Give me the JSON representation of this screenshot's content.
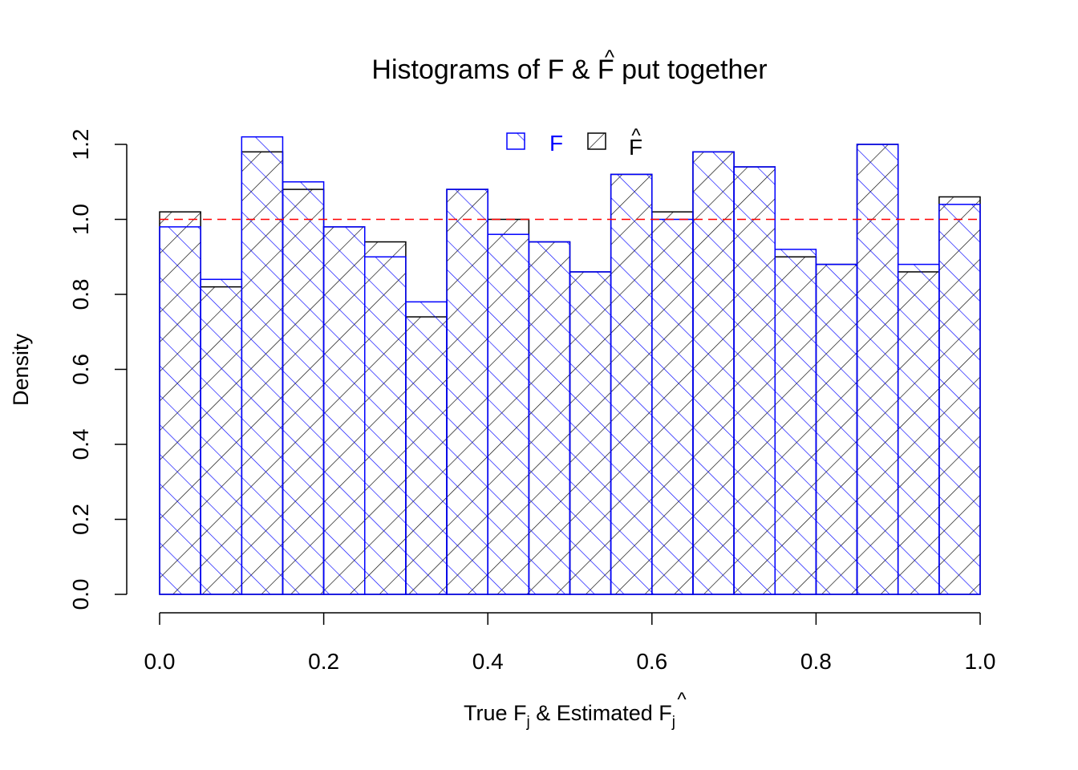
{
  "chart_data": {
    "type": "bar",
    "title": "Histograms of F & F̂ put together",
    "title_parts": {
      "pre": "Histograms of F & ",
      "sym": "F",
      "hat": "^",
      "post": " put together"
    },
    "xlabel": "True F_j & Estimated F̂_j",
    "xlabel_parts": {
      "a": "True F",
      "sub": "j",
      "b": " & Estimated ",
      "sym": "F",
      "hat": "^",
      "sub2": "j"
    },
    "ylabel": "Density",
    "xlim": [
      0,
      1
    ],
    "ylim": [
      0,
      1.2
    ],
    "x_ticks": [
      "0.0",
      "0.2",
      "0.4",
      "0.6",
      "0.8",
      "1.0"
    ],
    "y_ticks": [
      "0.0",
      "0.2",
      "0.4",
      "0.6",
      "0.8",
      "1.0",
      "1.2"
    ],
    "bin_edges": [
      0,
      0.05,
      0.1,
      0.15,
      0.2,
      0.25,
      0.3,
      0.35,
      0.4,
      0.45,
      0.5,
      0.55,
      0.6,
      0.65,
      0.7,
      0.75,
      0.8,
      0.85,
      0.9,
      0.95,
      1.0
    ],
    "reference_line": {
      "y": 1.0,
      "color": "#ff0000",
      "style": "dashed"
    },
    "series": [
      {
        "name": "F̂",
        "legend": {
          "sym": "F",
          "hat": "^"
        },
        "color": "#000000",
        "hatch": "diagonal-45",
        "values": [
          1.02,
          0.82,
          1.18,
          1.08,
          0.98,
          0.94,
          0.74,
          1.08,
          1.0,
          0.94,
          0.86,
          1.12,
          1.02,
          1.18,
          1.14,
          0.9,
          0.88,
          1.2,
          0.86,
          1.06
        ]
      },
      {
        "name": "F",
        "legend": {
          "sym": "F"
        },
        "color": "#0000ff",
        "hatch": "diagonal-135",
        "values": [
          0.98,
          0.84,
          1.22,
          1.1,
          0.98,
          0.9,
          0.78,
          1.08,
          0.96,
          0.94,
          0.86,
          1.12,
          1.0,
          1.18,
          1.14,
          0.92,
          0.88,
          1.2,
          0.88,
          1.04
        ]
      }
    ],
    "legend_position": "top-center",
    "grid": false
  }
}
